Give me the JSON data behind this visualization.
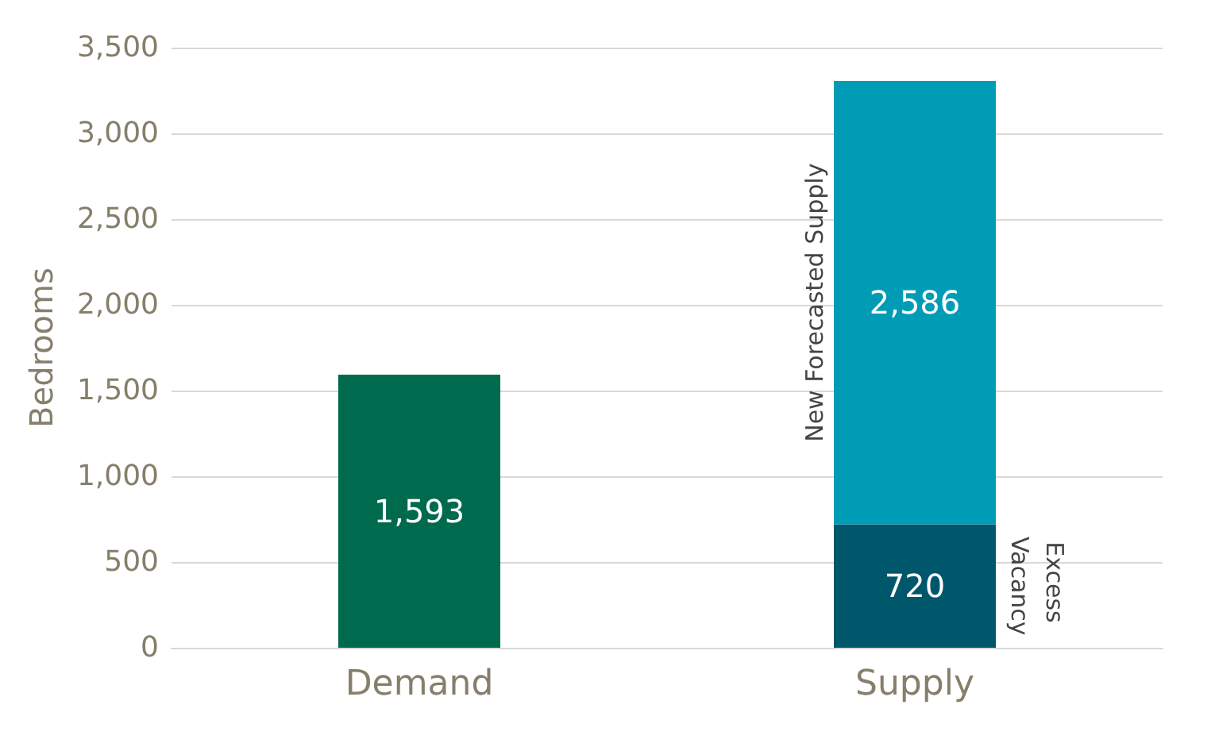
{
  "chart_data": {
    "type": "bar",
    "stacked": true,
    "ylabel": "Bedrooms",
    "categories": [
      "Demand",
      "Supply"
    ],
    "series": [
      {
        "color": "#006a4e",
        "values": [
          1593,
          null
        ],
        "value_labels": [
          "1,593",
          null
        ]
      },
      {
        "name": "Excess Vacancy",
        "color": "#00566b",
        "values": [
          null,
          720
        ],
        "value_labels": [
          null,
          "720"
        ]
      },
      {
        "name": "New Forecasted Supply",
        "color": "#009cb5",
        "values": [
          null,
          2586
        ],
        "value_labels": [
          null,
          "2,586"
        ]
      }
    ],
    "ylim": [
      0,
      3500
    ],
    "yticks": [
      0,
      500,
      {
        "value": 1000,
        "label": "1,000"
      },
      {
        "value": 1500,
        "label": "1,500"
      },
      {
        "value": 2000,
        "label": "2,000"
      },
      {
        "value": 2500,
        "label": "2,500"
      },
      {
        "value": 3000,
        "label": "3,000"
      },
      {
        "value": 3500,
        "label": "3,500"
      }
    ],
    "grid": "y",
    "legend": false
  }
}
